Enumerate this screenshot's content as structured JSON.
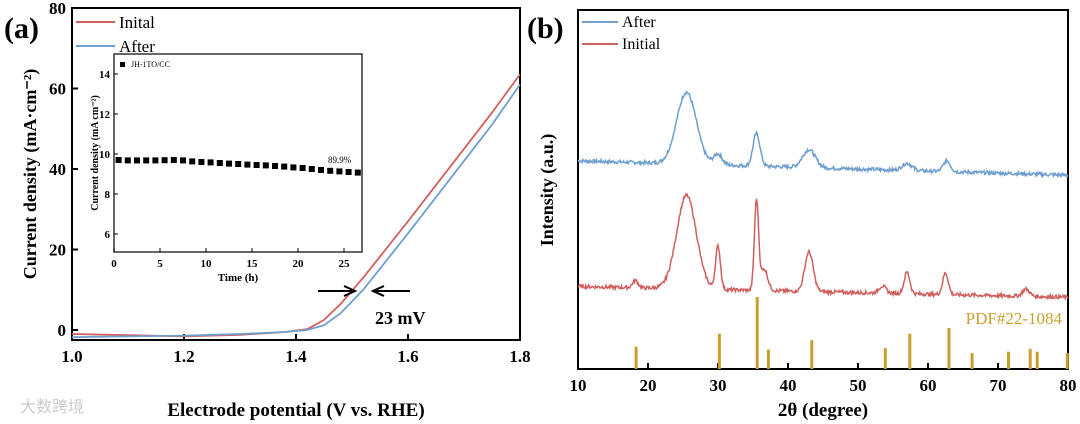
{
  "watermark": "大数跨境",
  "colors": {
    "initial": "#d0605e",
    "after": "#6e9fcf",
    "reference": "#c8a030",
    "axis": "#000000"
  },
  "chart_data": [
    {
      "type": "line",
      "panel_label": "(a)",
      "xlabel": "Electrode potential (V vs. RHE)",
      "ylabel": "Current density (mA·cm⁻²)",
      "xlim": [
        1.0,
        1.8
      ],
      "ylim": [
        -2.5,
        80
      ],
      "xticks": [
        "1.0",
        "1.2",
        "1.4",
        "1.6",
        "1.8"
      ],
      "yticks": [
        "0",
        "20",
        "40",
        "60",
        "80"
      ],
      "annotation": "23 mV",
      "series": [
        {
          "name": "Inital",
          "x": [
            1.0,
            1.1,
            1.2,
            1.3,
            1.38,
            1.42,
            1.45,
            1.48,
            1.52,
            1.56,
            1.6,
            1.65,
            1.7,
            1.75,
            1.8
          ],
          "values": [
            -1,
            -1.3,
            -1.6,
            -1.2,
            -0.5,
            0.2,
            2.5,
            6.5,
            13,
            20,
            27,
            36,
            45,
            54,
            63.5
          ]
        },
        {
          "name": "After",
          "x": [
            1.0,
            1.1,
            1.2,
            1.3,
            1.38,
            1.42,
            1.45,
            1.48,
            1.52,
            1.56,
            1.6,
            1.65,
            1.7,
            1.75,
            1.8
          ],
          "values": [
            -1.8,
            -1.6,
            -1.4,
            -1.0,
            -0.5,
            0,
            1.2,
            4.2,
            10,
            17,
            24,
            33,
            42,
            51,
            61
          ]
        }
      ],
      "inset": {
        "type": "scatter",
        "legend": "JH-1TO/CC",
        "xlabel": "Time (h)",
        "ylabel": "Current density (mA cm⁻²)",
        "xlim": [
          0,
          27
        ],
        "ylim": [
          5,
          15
        ],
        "xticks": [
          "0",
          "5",
          "10",
          "15",
          "20",
          "25"
        ],
        "yticks": [
          "6",
          "8",
          "10",
          "12",
          "14"
        ],
        "annotation": "89.9%",
        "x": [
          0.5,
          1.5,
          2.5,
          3.5,
          4.5,
          5.5,
          6.5,
          7.5,
          8.5,
          9.5,
          10.5,
          11.5,
          12.5,
          13.5,
          14.5,
          15.5,
          16.5,
          17.5,
          18.5,
          19.5,
          20.5,
          21.5,
          22.5,
          23.5,
          24.5,
          25.5,
          26.5
        ],
        "values": [
          9.7,
          9.68,
          9.68,
          9.68,
          9.68,
          9.69,
          9.7,
          9.68,
          9.63,
          9.6,
          9.58,
          9.55,
          9.52,
          9.5,
          9.47,
          9.45,
          9.43,
          9.4,
          9.37,
          9.33,
          9.3,
          9.25,
          9.2,
          9.16,
          9.13,
          9.1,
          9.07
        ]
      }
    },
    {
      "type": "line",
      "panel_label": "(b)",
      "xlabel": "2θ (degree)",
      "ylabel": "Intensity (a.u.)",
      "xlim": [
        10,
        80
      ],
      "xticks": [
        "10",
        "20",
        "30",
        "40",
        "50",
        "60",
        "70",
        "80"
      ],
      "series": [
        {
          "name": "After",
          "baseline": [
            58,
            54
          ],
          "peaks": [
            [
              25.5,
              20,
              1.4
            ],
            [
              30,
              3,
              0.6
            ],
            [
              35.5,
              9,
              0.5
            ],
            [
              43,
              5,
              0.9
            ],
            [
              57,
              2,
              0.7
            ],
            [
              62.7,
              3,
              0.5
            ]
          ]
        },
        {
          "name": "Initial",
          "baseline": [
            23,
            20
          ],
          "peaks": [
            [
              18.2,
              2,
              0.4
            ],
            [
              25.5,
              26,
              1.4
            ],
            [
              30,
              12,
              0.35
            ],
            [
              35.5,
              25,
              0.3
            ],
            [
              36.6,
              6,
              0.5
            ],
            [
              43,
              11,
              0.6
            ],
            [
              53.5,
              2,
              0.5
            ],
            [
              57,
              6,
              0.4
            ],
            [
              62.5,
              6,
              0.4
            ],
            [
              74,
              2,
              0.5
            ]
          ]
        }
      ],
      "reference": {
        "name": "PDF#22-1084",
        "x": [
          18.3,
          30.2,
          35.6,
          37.2,
          43.4,
          53.9,
          57.4,
          63.0,
          66.3,
          71.5,
          74.6,
          75.6,
          79.9
        ],
        "values": [
          0.31,
          0.49,
          1.0,
          0.27,
          0.4,
          0.29,
          0.49,
          0.57,
          0.22,
          0.24,
          0.28,
          0.24,
          0.22
        ]
      }
    }
  ]
}
